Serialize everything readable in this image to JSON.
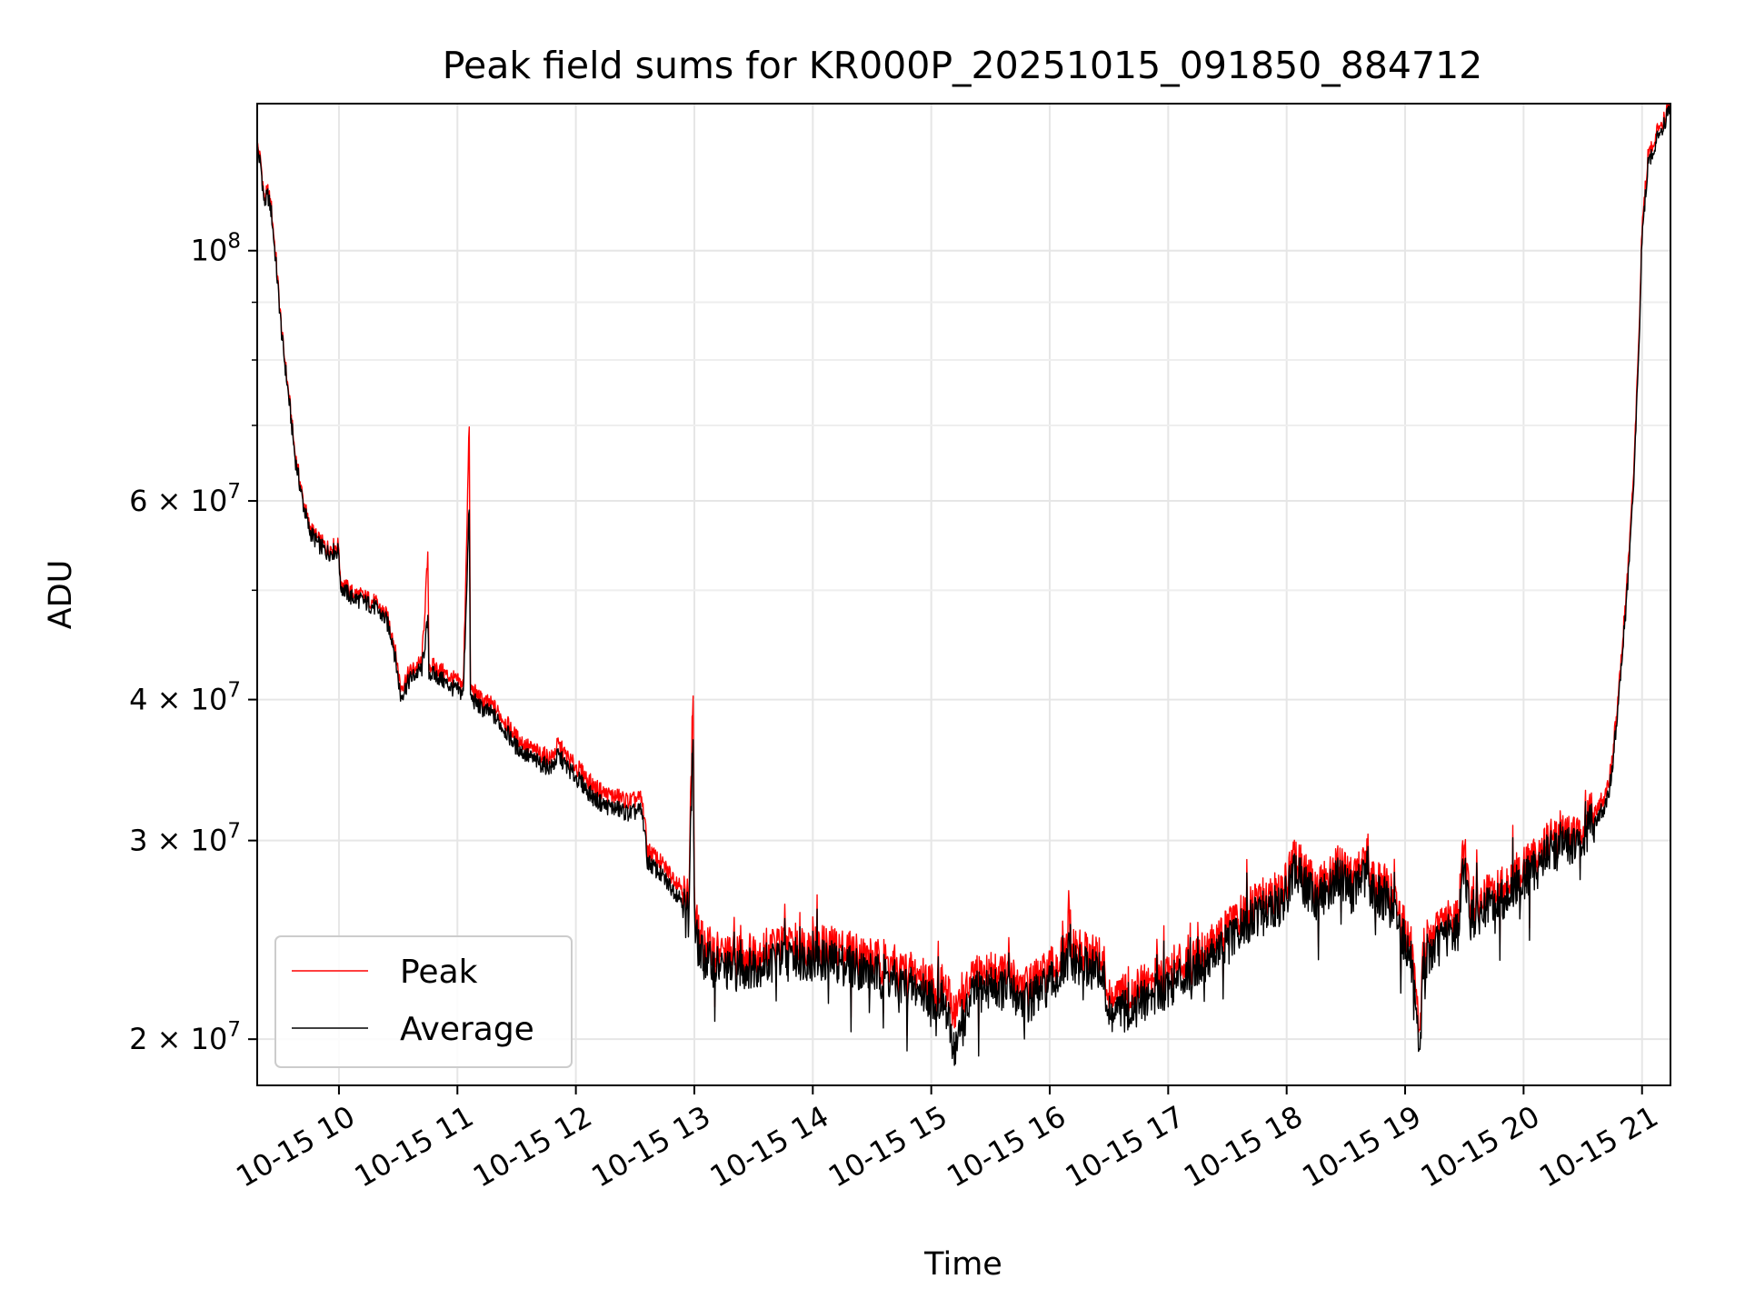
{
  "chart_data": {
    "type": "line",
    "title": "Peak field sums for KR000P_20251015_091850_884712",
    "xlabel": "Time",
    "ylabel": "ADU",
    "yscale": "log",
    "grid": true,
    "legend_location": "lower-left",
    "xlim": [
      9.31,
      21.24
    ],
    "ylim": [
      18200000,
      135000000
    ],
    "x_ticks": [
      {
        "value": 10,
        "label": "10-15 10"
      },
      {
        "value": 11,
        "label": "10-15 11"
      },
      {
        "value": 12,
        "label": "10-15 12"
      },
      {
        "value": 13,
        "label": "10-15 13"
      },
      {
        "value": 14,
        "label": "10-15 14"
      },
      {
        "value": 15,
        "label": "10-15 15"
      },
      {
        "value": 16,
        "label": "10-15 16"
      },
      {
        "value": 17,
        "label": "10-15 17"
      },
      {
        "value": 18,
        "label": "10-15 18"
      },
      {
        "value": 19,
        "label": "10-15 19"
      },
      {
        "value": 20,
        "label": "10-15 20"
      },
      {
        "value": 21,
        "label": "10-15 21"
      }
    ],
    "y_ticks": [
      {
        "value": 100000000,
        "base": "10",
        "exp": "8"
      },
      {
        "value": 60000000,
        "base": "6 × 10",
        "exp": "7"
      },
      {
        "value": 40000000,
        "base": "4 × 10",
        "exp": "7"
      },
      {
        "value": 30000000,
        "base": "3 × 10",
        "exp": "7"
      },
      {
        "value": 20000000,
        "base": "2 × 10",
        "exp": "7"
      }
    ],
    "y_minor_ticks": [
      50000000,
      70000000,
      80000000,
      90000000
    ],
    "x_unit": "hour of day (2025-10-15)",
    "series": [
      {
        "name": "Peak",
        "color": "#ff0000",
        "points": [
          [
            9.31,
            124000000
          ],
          [
            9.34,
            120000000
          ],
          [
            9.37,
            111000000
          ],
          [
            9.4,
            113000000
          ],
          [
            9.43,
            109000000
          ],
          [
            9.47,
            98000000
          ],
          [
            9.52,
            84000000
          ],
          [
            9.58,
            74000000
          ],
          [
            9.63,
            66000000
          ],
          [
            9.7,
            60000000
          ],
          [
            9.75,
            57000000
          ],
          [
            9.82,
            55500000
          ],
          [
            9.9,
            54500000
          ],
          [
            10.0,
            54800000
          ],
          [
            10.01,
            51000000
          ],
          [
            10.1,
            49800000
          ],
          [
            10.2,
            49400000
          ],
          [
            10.3,
            48800000
          ],
          [
            10.4,
            47500000
          ],
          [
            10.45,
            45800000
          ],
          [
            10.5,
            42500000
          ],
          [
            10.52,
            41000000
          ],
          [
            10.6,
            42300000
          ],
          [
            10.7,
            43200000
          ],
          [
            10.75,
            53500000
          ],
          [
            10.76,
            43000000
          ],
          [
            10.85,
            42500000
          ],
          [
            10.95,
            41800000
          ],
          [
            11.05,
            41200000
          ],
          [
            11.1,
            70500000
          ],
          [
            11.11,
            41000000
          ],
          [
            11.2,
            40000000
          ],
          [
            11.3,
            39500000
          ],
          [
            11.4,
            38300000
          ],
          [
            11.5,
            37000000
          ],
          [
            11.6,
            36300000
          ],
          [
            11.7,
            35800000
          ],
          [
            11.8,
            35500000
          ],
          [
            11.85,
            36500000
          ],
          [
            11.95,
            35300000
          ],
          [
            12.05,
            34500000
          ],
          [
            12.15,
            33500000
          ],
          [
            12.25,
            33000000
          ],
          [
            12.35,
            32800000
          ],
          [
            12.45,
            32500000
          ],
          [
            12.55,
            32700000
          ],
          [
            12.58,
            31500000
          ],
          [
            12.6,
            29500000
          ],
          [
            12.7,
            28800000
          ],
          [
            12.8,
            28000000
          ],
          [
            12.9,
            27300000
          ],
          [
            12.95,
            26500000
          ],
          [
            12.99,
            41000000
          ],
          [
            13.0,
            25800000
          ],
          [
            13.05,
            24500000
          ],
          [
            13.15,
            24000000
          ],
          [
            13.3,
            23700000
          ],
          [
            13.5,
            23900000
          ],
          [
            13.7,
            24200000
          ],
          [
            13.9,
            24300000
          ],
          [
            14.1,
            24200000
          ],
          [
            14.3,
            24000000
          ],
          [
            14.5,
            23600000
          ],
          [
            14.7,
            23200000
          ],
          [
            14.9,
            22800000
          ],
          [
            15.1,
            22300000
          ],
          [
            15.2,
            21200000
          ],
          [
            15.25,
            21500000
          ],
          [
            15.35,
            22600000
          ],
          [
            15.5,
            23000000
          ],
          [
            15.65,
            22800000
          ],
          [
            15.8,
            22300000
          ],
          [
            15.9,
            22600000
          ],
          [
            16.05,
            23300000
          ],
          [
            16.15,
            23900000
          ],
          [
            16.16,
            26700000
          ],
          [
            16.17,
            24000000
          ],
          [
            16.3,
            23900000
          ],
          [
            16.45,
            23500000
          ],
          [
            16.5,
            21600000
          ],
          [
            16.6,
            21800000
          ],
          [
            16.75,
            22200000
          ],
          [
            16.9,
            22700000
          ],
          [
            17.0,
            23000000
          ],
          [
            17.1,
            23400000
          ],
          [
            17.2,
            23800000
          ],
          [
            17.35,
            24300000
          ],
          [
            17.5,
            25000000
          ],
          [
            17.7,
            26200000
          ],
          [
            17.85,
            27100000
          ],
          [
            17.95,
            26800000
          ],
          [
            18.07,
            29000000
          ],
          [
            18.15,
            28100000
          ],
          [
            18.25,
            27300000
          ],
          [
            18.35,
            27800000
          ],
          [
            18.45,
            28700000
          ],
          [
            18.55,
            27700000
          ],
          [
            18.65,
            28500000
          ],
          [
            18.75,
            27600000
          ],
          [
            18.85,
            27300000
          ],
          [
            18.95,
            26000000
          ],
          [
            19.05,
            24200000
          ],
          [
            19.1,
            21100000
          ],
          [
            19.13,
            20400000
          ],
          [
            19.15,
            24200000
          ],
          [
            19.25,
            24800000
          ],
          [
            19.35,
            25400000
          ],
          [
            19.45,
            25800000
          ],
          [
            19.5,
            30000000
          ],
          [
            19.55,
            26200000
          ],
          [
            19.7,
            26800000
          ],
          [
            19.85,
            27500000
          ],
          [
            20.0,
            28400000
          ],
          [
            20.1,
            29000000
          ],
          [
            20.2,
            30000000
          ],
          [
            20.35,
            30400000
          ],
          [
            20.5,
            30400000
          ],
          [
            20.55,
            31500000
          ],
          [
            20.7,
            32900000
          ],
          [
            20.75,
            35500000
          ],
          [
            20.8,
            40500000
          ],
          [
            20.87,
            50000000
          ],
          [
            20.93,
            63500000
          ],
          [
            20.98,
            88000000
          ],
          [
            21.0,
            105000000
          ],
          [
            21.05,
            121000000
          ],
          [
            21.12,
            127000000
          ],
          [
            21.18,
            131000000
          ],
          [
            21.24,
            134500000
          ]
        ]
      },
      {
        "name": "Average",
        "color": "#000000",
        "points": [
          [
            9.31,
            123000000
          ],
          [
            9.34,
            119000000
          ],
          [
            9.37,
            110000000
          ],
          [
            9.4,
            112000000
          ],
          [
            9.43,
            108000000
          ],
          [
            9.47,
            97000000
          ],
          [
            9.52,
            83500000
          ],
          [
            9.58,
            73500000
          ],
          [
            9.63,
            65500000
          ],
          [
            9.7,
            59500000
          ],
          [
            9.75,
            56500000
          ],
          [
            9.82,
            55000000
          ],
          [
            9.9,
            54000000
          ],
          [
            10.0,
            54200000
          ],
          [
            10.01,
            50500000
          ],
          [
            10.1,
            49300000
          ],
          [
            10.2,
            48900000
          ],
          [
            10.3,
            48300000
          ],
          [
            10.4,
            47000000
          ],
          [
            10.45,
            45300000
          ],
          [
            10.5,
            41800000
          ],
          [
            10.52,
            40200000
          ],
          [
            10.6,
            41700000
          ],
          [
            10.7,
            42600000
          ],
          [
            10.75,
            47000000
          ],
          [
            10.76,
            42300000
          ],
          [
            10.85,
            41800000
          ],
          [
            10.95,
            41000000
          ],
          [
            11.05,
            40500000
          ],
          [
            11.1,
            59500000
          ],
          [
            11.11,
            40200000
          ],
          [
            11.2,
            39300000
          ],
          [
            11.3,
            38800000
          ],
          [
            11.4,
            37600000
          ],
          [
            11.5,
            36300000
          ],
          [
            11.6,
            35600000
          ],
          [
            11.7,
            35100000
          ],
          [
            11.8,
            34800000
          ],
          [
            11.85,
            35700000
          ],
          [
            11.95,
            34600000
          ],
          [
            12.05,
            33700000
          ],
          [
            12.15,
            32700000
          ],
          [
            12.25,
            32200000
          ],
          [
            12.35,
            32000000
          ],
          [
            12.45,
            31700000
          ],
          [
            12.55,
            31900000
          ],
          [
            12.58,
            30700000
          ],
          [
            12.6,
            28800000
          ],
          [
            12.7,
            28100000
          ],
          [
            12.8,
            27300000
          ],
          [
            12.9,
            26600000
          ],
          [
            12.95,
            25800000
          ],
          [
            12.99,
            37500000
          ],
          [
            13.0,
            25000000
          ],
          [
            13.05,
            23800000
          ],
          [
            13.15,
            23300000
          ],
          [
            13.3,
            23000000
          ],
          [
            13.5,
            23200000
          ],
          [
            13.7,
            23500000
          ],
          [
            13.9,
            23600000
          ],
          [
            14.1,
            23500000
          ],
          [
            14.3,
            23300000
          ],
          [
            14.5,
            22900000
          ],
          [
            14.7,
            22500000
          ],
          [
            14.9,
            22100000
          ],
          [
            15.1,
            21600000
          ],
          [
            15.2,
            19600000
          ],
          [
            15.25,
            20300000
          ],
          [
            15.35,
            21900000
          ],
          [
            15.5,
            22300000
          ],
          [
            15.65,
            22100000
          ],
          [
            15.8,
            21600000
          ],
          [
            15.9,
            21900000
          ],
          [
            16.05,
            22600000
          ],
          [
            16.15,
            23200000
          ],
          [
            16.16,
            24500000
          ],
          [
            16.17,
            23300000
          ],
          [
            16.3,
            23200000
          ],
          [
            16.45,
            22800000
          ],
          [
            16.5,
            20900000
          ],
          [
            16.6,
            21100000
          ],
          [
            16.75,
            21500000
          ],
          [
            16.9,
            22000000
          ],
          [
            17.0,
            22300000
          ],
          [
            17.1,
            22700000
          ],
          [
            17.2,
            23100000
          ],
          [
            17.35,
            23600000
          ],
          [
            17.5,
            24300000
          ],
          [
            17.7,
            25500000
          ],
          [
            17.85,
            26400000
          ],
          [
            17.95,
            26100000
          ],
          [
            18.07,
            28200000
          ],
          [
            18.15,
            27400000
          ],
          [
            18.25,
            26600000
          ],
          [
            18.35,
            27100000
          ],
          [
            18.45,
            28000000
          ],
          [
            18.55,
            27000000
          ],
          [
            18.65,
            27800000
          ],
          [
            18.75,
            26900000
          ],
          [
            18.85,
            26600000
          ],
          [
            18.95,
            25300000
          ],
          [
            19.05,
            23500000
          ],
          [
            19.1,
            20300000
          ],
          [
            19.13,
            19600000
          ],
          [
            19.15,
            23500000
          ],
          [
            19.25,
            24100000
          ],
          [
            19.35,
            24700000
          ],
          [
            19.45,
            25100000
          ],
          [
            19.5,
            28800000
          ],
          [
            19.55,
            25500000
          ],
          [
            19.7,
            26100000
          ],
          [
            19.85,
            26800000
          ],
          [
            20.0,
            27700000
          ],
          [
            20.1,
            28300000
          ],
          [
            20.2,
            29300000
          ],
          [
            20.35,
            29700000
          ],
          [
            20.5,
            29700000
          ],
          [
            20.55,
            30800000
          ],
          [
            20.7,
            32200000
          ],
          [
            20.75,
            34800000
          ],
          [
            20.8,
            39800000
          ],
          [
            20.87,
            49000000
          ],
          [
            20.93,
            62000000
          ],
          [
            20.98,
            86000000
          ],
          [
            21.0,
            103000000
          ],
          [
            21.05,
            119000000
          ],
          [
            21.12,
            125000000
          ],
          [
            21.18,
            129500000
          ],
          [
            21.24,
            133500000
          ]
        ]
      }
    ]
  }
}
